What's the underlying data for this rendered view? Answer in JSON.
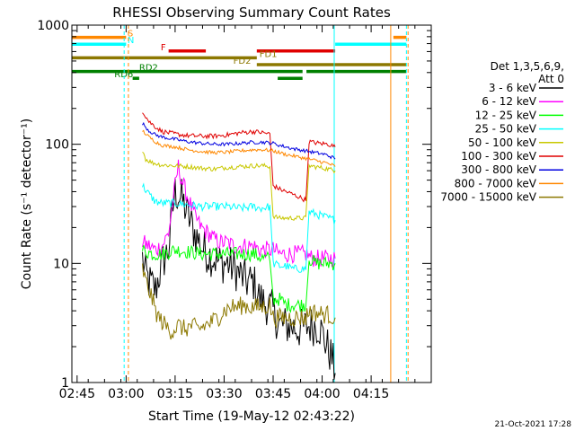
{
  "chart_data": {
    "type": "line",
    "title": "RHESSI Observing Summary Count Rates",
    "xlabel": "Start Time (19-May-12 02:43:22)",
    "ylabel": "Count Rate (s⁻¹ detector⁻¹)",
    "yscale": "log",
    "ylim": [
      1,
      1000
    ],
    "xlim_min": [
      0,
      110
    ],
    "x_unit": "minutes after 02:43:22",
    "x_ticks": [
      {
        "label": "02:45",
        "min": 1.6
      },
      {
        "label": "03:00",
        "min": 16.6
      },
      {
        "label": "03:15",
        "min": 31.6
      },
      {
        "label": "03:30",
        "min": 46.6
      },
      {
        "label": "03:45",
        "min": 61.6
      },
      {
        "label": "04:00",
        "min": 76.6
      },
      {
        "label": "04:15",
        "min": 91.6
      }
    ],
    "y_ticks": [
      {
        "label": "1",
        "value": 1
      },
      {
        "label": "10",
        "value": 10
      },
      {
        "label": "100",
        "value": 100
      },
      {
        "label": "1000",
        "value": 1000
      }
    ],
    "legend": {
      "header": [
        "Det 1,3,5,6,9,",
        "Att 0"
      ],
      "position": "right"
    },
    "series": [
      {
        "name": "3 - 6 keV",
        "color": "#000000",
        "noise": 0.35,
        "points": [
          [
            21.6,
            11
          ],
          [
            22.6,
            8
          ],
          [
            23.6,
            7
          ],
          [
            25.6,
            6
          ],
          [
            27.6,
            10
          ],
          [
            29.6,
            13
          ],
          [
            30.6,
            25
          ],
          [
            31.6,
            40
          ],
          [
            33.6,
            35
          ],
          [
            35.6,
            25
          ],
          [
            37.6,
            18
          ],
          [
            39.6,
            14
          ],
          [
            41.6,
            12
          ],
          [
            43.6,
            11
          ],
          [
            45.6,
            10
          ],
          [
            47.6,
            10
          ],
          [
            49.6,
            9
          ],
          [
            51.6,
            8
          ],
          [
            53.6,
            7
          ],
          [
            55.6,
            7
          ],
          [
            57.6,
            5
          ],
          [
            59.6,
            4.5
          ],
          [
            61.6,
            4
          ],
          [
            63.6,
            3
          ],
          [
            66.6,
            3
          ],
          [
            69.6,
            2.8
          ],
          [
            72.6,
            3
          ],
          [
            75.6,
            3
          ],
          [
            77.6,
            2.2
          ],
          [
            79.6,
            1.6
          ],
          [
            80.6,
            1.2
          ]
        ]
      },
      {
        "name": "6 - 12 keV",
        "color": "#ff00ff",
        "noise": 0.15,
        "points": [
          [
            21.6,
            15
          ],
          [
            23.6,
            14
          ],
          [
            25.6,
            13
          ],
          [
            27.6,
            14
          ],
          [
            29.6,
            18
          ],
          [
            30.6,
            28
          ],
          [
            31.6,
            45
          ],
          [
            32.6,
            65
          ],
          [
            33.6,
            50
          ],
          [
            35.6,
            35
          ],
          [
            37.6,
            25
          ],
          [
            39.6,
            20
          ],
          [
            41.6,
            18
          ],
          [
            43.6,
            16
          ],
          [
            45.6,
            15
          ],
          [
            47.6,
            15
          ],
          [
            49.6,
            14
          ],
          [
            51.6,
            14
          ],
          [
            53.6,
            14
          ],
          [
            55.6,
            14
          ],
          [
            57.6,
            13
          ],
          [
            59.6,
            13
          ],
          [
            61.6,
            13
          ],
          [
            63.6,
            12
          ],
          [
            65.6,
            12
          ],
          [
            67.6,
            12
          ],
          [
            69.6,
            12
          ],
          [
            71.6,
            12
          ],
          [
            73.6,
            11
          ],
          [
            75.6,
            11
          ],
          [
            77.6,
            11
          ],
          [
            79.6,
            11
          ],
          [
            80.6,
            11
          ]
        ]
      },
      {
        "name": "12 - 25 keV",
        "color": "#00ff00",
        "noise": 0.12,
        "points": [
          [
            21.6,
            13
          ],
          [
            24.6,
            12
          ],
          [
            27.6,
            12
          ],
          [
            31.6,
            13
          ],
          [
            35.6,
            12.5
          ],
          [
            39.6,
            12
          ],
          [
            43.6,
            12
          ],
          [
            47.6,
            12
          ],
          [
            51.6,
            12
          ],
          [
            55.6,
            12
          ],
          [
            58.6,
            11
          ],
          [
            60.6,
            11
          ],
          [
            61.6,
            5
          ],
          [
            63.6,
            5
          ],
          [
            65.6,
            4.5
          ],
          [
            67.6,
            4.5
          ],
          [
            69.6,
            4.5
          ],
          [
            71.6,
            4.5
          ],
          [
            72.6,
            11
          ],
          [
            74.6,
            10
          ],
          [
            76.6,
            10
          ],
          [
            78.6,
            10
          ],
          [
            80.6,
            10
          ]
        ]
      },
      {
        "name": "25 - 50 keV",
        "color": "#00ffff",
        "noise": 0.07,
        "points": [
          [
            21.6,
            45
          ],
          [
            23.6,
            38
          ],
          [
            25.6,
            33
          ],
          [
            27.6,
            32
          ],
          [
            31.6,
            32
          ],
          [
            35.6,
            31
          ],
          [
            39.6,
            30
          ],
          [
            43.6,
            30
          ],
          [
            47.6,
            30
          ],
          [
            51.6,
            29
          ],
          [
            55.6,
            30
          ],
          [
            57.6,
            29
          ],
          [
            60.6,
            30
          ],
          [
            61.6,
            10
          ],
          [
            63.6,
            9.5
          ],
          [
            65.6,
            9.5
          ],
          [
            67.6,
            9
          ],
          [
            69.6,
            9
          ],
          [
            71.6,
            9
          ],
          [
            72.6,
            27
          ],
          [
            74.6,
            26
          ],
          [
            76.6,
            25
          ],
          [
            78.6,
            24
          ],
          [
            80.6,
            23
          ]
        ]
      },
      {
        "name": "50 - 100 keV",
        "color": "#c8c800",
        "noise": 0.04,
        "points": [
          [
            21.6,
            90
          ],
          [
            22.6,
            75
          ],
          [
            24.6,
            70
          ],
          [
            27.6,
            67
          ],
          [
            31.6,
            66
          ],
          [
            35.6,
            65
          ],
          [
            39.6,
            63
          ],
          [
            43.6,
            62
          ],
          [
            47.6,
            64
          ],
          [
            51.6,
            65
          ],
          [
            55.6,
            66
          ],
          [
            58.6,
            66
          ],
          [
            60.6,
            65
          ],
          [
            61.6,
            25
          ],
          [
            63.6,
            24
          ],
          [
            65.6,
            24
          ],
          [
            67.6,
            24
          ],
          [
            69.6,
            24
          ],
          [
            71.6,
            24
          ],
          [
            72.6,
            66
          ],
          [
            75.6,
            64
          ],
          [
            78.6,
            62
          ],
          [
            80.6,
            60
          ]
        ]
      },
      {
        "name": "100 - 300 keV",
        "color": "#e00000",
        "noise": 0.04,
        "points": [
          [
            21.6,
            190
          ],
          [
            23.6,
            155
          ],
          [
            25.6,
            140
          ],
          [
            27.6,
            128
          ],
          [
            31.6,
            122
          ],
          [
            35.6,
            118
          ],
          [
            39.6,
            117
          ],
          [
            43.6,
            117
          ],
          [
            47.6,
            120
          ],
          [
            51.6,
            125
          ],
          [
            55.6,
            128
          ],
          [
            58.6,
            125
          ],
          [
            60.6,
            122
          ],
          [
            61.6,
            45
          ],
          [
            63.6,
            42
          ],
          [
            65.6,
            40
          ],
          [
            67.6,
            38
          ],
          [
            69.6,
            36
          ],
          [
            71.6,
            34
          ],
          [
            72.6,
            105
          ],
          [
            75.6,
            102
          ],
          [
            78.6,
            100
          ],
          [
            80.6,
            95
          ]
        ]
      },
      {
        "name": "300 - 800 keV",
        "color": "#0000e0",
        "noise": 0.03,
        "points": [
          [
            21.6,
            150
          ],
          [
            23.6,
            130
          ],
          [
            25.6,
            120
          ],
          [
            27.6,
            115
          ],
          [
            31.6,
            110
          ],
          [
            35.6,
            105
          ],
          [
            39.6,
            102
          ],
          [
            43.6,
            100
          ],
          [
            47.6,
            100
          ],
          [
            51.6,
            102
          ],
          [
            55.6,
            104
          ],
          [
            58.6,
            104
          ],
          [
            61.6,
            102
          ],
          [
            63.6,
            98
          ],
          [
            65.6,
            95
          ],
          [
            67.6,
            92
          ],
          [
            69.6,
            90
          ],
          [
            71.6,
            88
          ],
          [
            73.6,
            86
          ],
          [
            75.6,
            84
          ],
          [
            77.6,
            82
          ],
          [
            79.6,
            78
          ],
          [
            80.6,
            75
          ]
        ]
      },
      {
        "name": "800 - 7000 keV",
        "color": "#ff8800",
        "noise": 0.03,
        "points": [
          [
            21.6,
            130
          ],
          [
            23.6,
            115
          ],
          [
            25.6,
            105
          ],
          [
            27.6,
            98
          ],
          [
            31.6,
            95
          ],
          [
            35.6,
            90
          ],
          [
            39.6,
            87
          ],
          [
            43.6,
            85
          ],
          [
            47.6,
            86
          ],
          [
            51.6,
            88
          ],
          [
            55.6,
            90
          ],
          [
            58.6,
            90
          ],
          [
            61.6,
            88
          ],
          [
            63.6,
            85
          ],
          [
            65.6,
            82
          ],
          [
            67.6,
            80
          ],
          [
            69.6,
            78
          ],
          [
            71.6,
            76
          ],
          [
            73.6,
            74
          ],
          [
            75.6,
            72
          ],
          [
            77.6,
            70
          ],
          [
            79.6,
            67
          ],
          [
            80.6,
            65
          ]
        ]
      },
      {
        "name": "7000 - 15000 keV",
        "color": "#8c7800",
        "noise": 0.16,
        "points": [
          [
            21.6,
            9
          ],
          [
            22.6,
            7
          ],
          [
            23.6,
            6
          ],
          [
            24.6,
            5
          ],
          [
            25.6,
            4
          ],
          [
            26.6,
            3.5
          ],
          [
            28.6,
            3
          ],
          [
            30.6,
            2.7
          ],
          [
            32.6,
            3
          ],
          [
            34.6,
            2.8
          ],
          [
            36.6,
            3
          ],
          [
            38.6,
            2.8
          ],
          [
            40.6,
            3
          ],
          [
            42.6,
            3.2
          ],
          [
            44.6,
            3.5
          ],
          [
            46.6,
            4
          ],
          [
            48.6,
            4.3
          ],
          [
            50.6,
            4.3
          ],
          [
            52.6,
            4.5
          ],
          [
            54.6,
            4.3
          ],
          [
            56.6,
            4.3
          ],
          [
            58.6,
            4.3
          ],
          [
            60.6,
            4.5
          ],
          [
            61.6,
            3.5
          ],
          [
            64.6,
            3.5
          ],
          [
            67.6,
            3.5
          ],
          [
            70.6,
            3.5
          ],
          [
            71.6,
            3.5
          ],
          [
            72.6,
            4
          ],
          [
            75.6,
            3.8
          ],
          [
            78.6,
            3.7
          ],
          [
            80.6,
            3.5
          ]
        ]
      }
    ],
    "flag_bars": [
      {
        "label": "S",
        "color": "#ff8800",
        "row": 1,
        "segments": [
          [
            0,
            16.6
          ],
          [
            98.4,
            102.4
          ]
        ],
        "label_at": 17.0
      },
      {
        "label": "N",
        "color": "#00ffff",
        "row": 2,
        "segments": [
          [
            0,
            16.6
          ],
          [
            80.6,
            102.4
          ]
        ],
        "label_at": 17.0
      },
      {
        "label": "F",
        "color": "#e00000",
        "row": 3,
        "segments": [
          [
            29.6,
            41.0
          ],
          [
            56.6,
            80.6
          ]
        ],
        "label_at": 27.2
      },
      {
        "label": "FD1",
        "color": "#8c7800",
        "row": 4,
        "segments": [
          [
            0,
            56.6
          ]
        ],
        "label_at": 57.4
      },
      {
        "label": "FD2",
        "color": "#8c7800",
        "row": 5,
        "segments": [
          [
            56.6,
            102.4
          ]
        ],
        "label_at": 49.4
      },
      {
        "label": "RD2",
        "color": "#008000",
        "row": 6,
        "segments": [
          [
            0,
            70.6
          ],
          [
            71.8,
            102.4
          ]
        ],
        "label_at": 20.6
      },
      {
        "label": "RD6",
        "color": "#008000",
        "row": 7,
        "segments": [
          [
            18.6,
            20.6
          ],
          [
            63.0,
            70.6
          ]
        ],
        "label_at": 13.0
      }
    ],
    "vertical_markers": [
      {
        "min": 0,
        "color": "#00ffff",
        "style": "solid"
      },
      {
        "min": 16.0,
        "color": "#00ffff",
        "style": "dashed"
      },
      {
        "min": 17.3,
        "color": "#ff8800",
        "style": "dashed"
      },
      {
        "min": 80.3,
        "color": "#00ffff",
        "style": "solid"
      },
      {
        "min": 97.6,
        "color": "#ff8800",
        "style": "solid"
      },
      {
        "min": 102.4,
        "color": "#00ffff",
        "style": "dashed"
      },
      {
        "min": 102.9,
        "color": "#ff8800",
        "style": "dashed"
      }
    ],
    "grid": false,
    "footer": "21-Oct-2021 17:28"
  }
}
